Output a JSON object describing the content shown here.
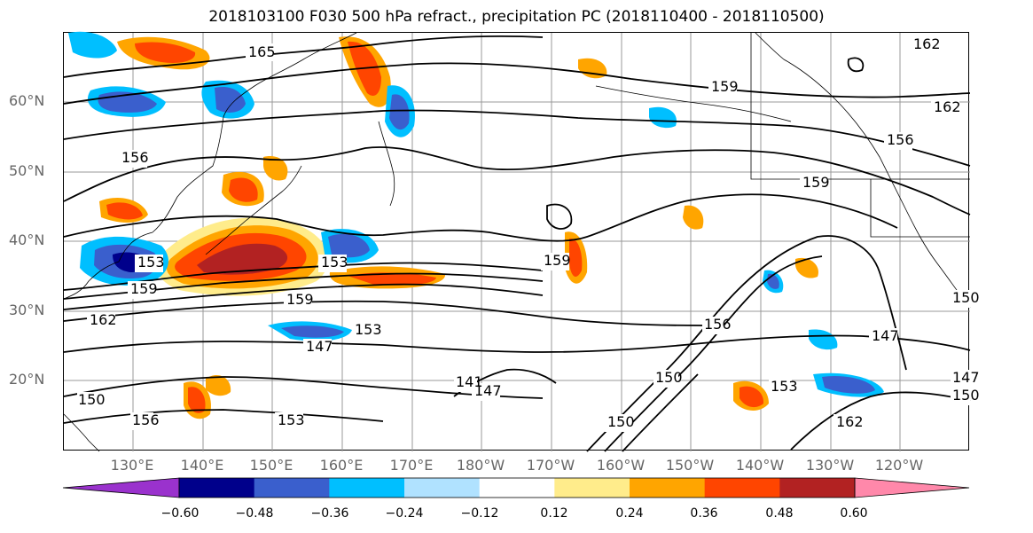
{
  "title": "2018103100 F030 500 hPa refract., precipitation PC (2018110400 - 2018110500)",
  "lat_labels": [
    "60°N",
    "50°N",
    "40°N",
    "30°N",
    "20°N"
  ],
  "lon_labels": [
    "130°E",
    "140°E",
    "150°E",
    "160°E",
    "170°E",
    "180°W",
    "170°W",
    "160°W",
    "150°W",
    "140°W",
    "130°W",
    "120°W"
  ],
  "contour_labels": [
    "165",
    "159",
    "162",
    "162",
    "156",
    "156",
    "159",
    "159",
    "153",
    "159",
    "162",
    "159",
    "147",
    "153",
    "147",
    "147",
    "141",
    "150",
    "153",
    "156",
    "150",
    "162",
    "150",
    "150",
    "156",
    "153",
    "150",
    "147",
    "153"
  ],
  "colorbar": {
    "tick_labels": [
      "−0.60",
      "−0.48",
      "−0.36",
      "−0.24",
      "−0.12",
      "0.12",
      "0.24",
      "0.36",
      "0.48",
      "0.60"
    ],
    "colors": [
      "#9a32cd",
      "#00008b",
      "#3a5fcd",
      "#00bfff",
      "#b0e2ff",
      "#ffffff",
      "#ffec8b",
      "#ffa500",
      "#ff4500",
      "#b22222",
      "#ff88aa"
    ]
  },
  "colors": {
    "contour": "#000000",
    "coast": "#000000",
    "grid": "#999999"
  }
}
